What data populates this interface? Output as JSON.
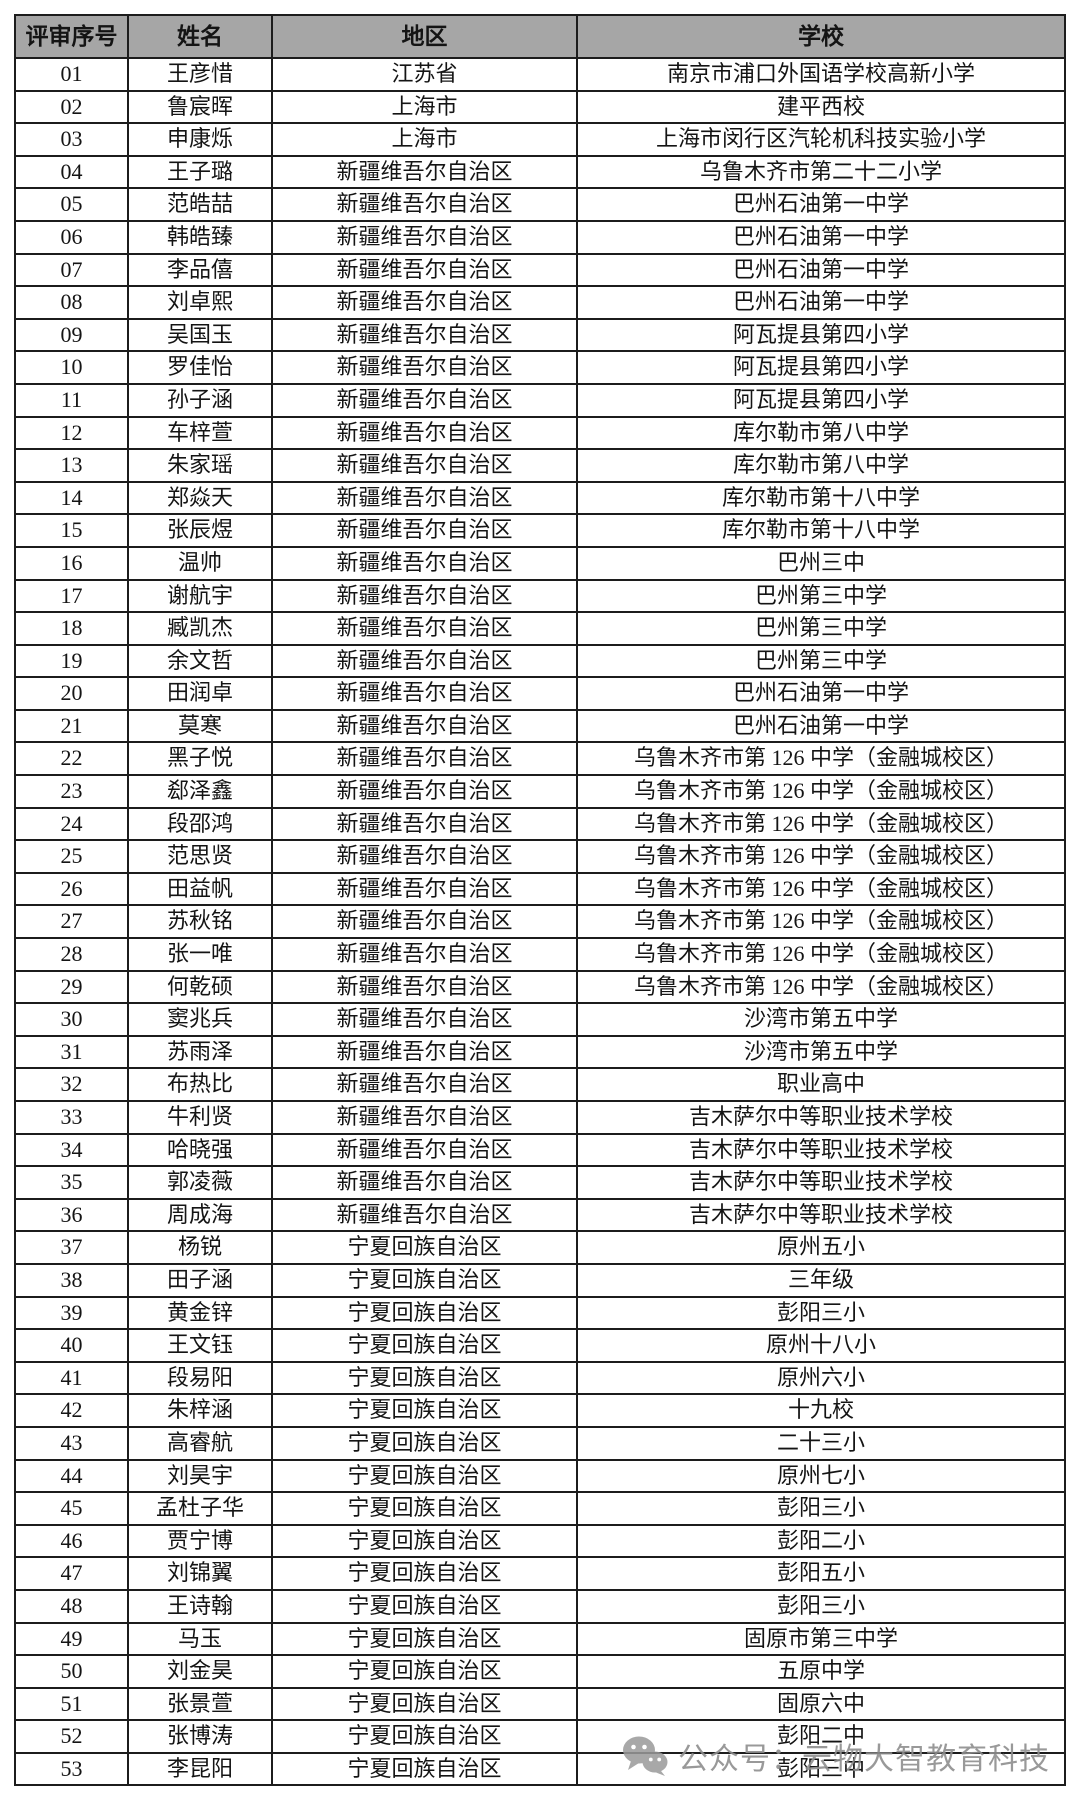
{
  "table": {
    "headers": [
      "评审序号",
      "姓名",
      "地区",
      "学校"
    ],
    "rows": [
      [
        "01",
        "王彦惜",
        "江苏省",
        "南京市浦口外国语学校高新小学"
      ],
      [
        "02",
        "鲁宸晖",
        "上海市",
        "建平西校"
      ],
      [
        "03",
        "申康烁",
        "上海市",
        "上海市闵行区汽轮机科技实验小学"
      ],
      [
        "04",
        "王子璐",
        "新疆维吾尔自治区",
        "乌鲁木齐市第二十二小学"
      ],
      [
        "05",
        "范皓喆",
        "新疆维吾尔自治区",
        "巴州石油第一中学"
      ],
      [
        "06",
        "韩皓臻",
        "新疆维吾尔自治区",
        "巴州石油第一中学"
      ],
      [
        "07",
        "李品僖",
        "新疆维吾尔自治区",
        "巴州石油第一中学"
      ],
      [
        "08",
        "刘卓熙",
        "新疆维吾尔自治区",
        "巴州石油第一中学"
      ],
      [
        "09",
        "吴国玉",
        "新疆维吾尔自治区",
        "阿瓦提县第四小学"
      ],
      [
        "10",
        "罗佳怡",
        "新疆维吾尔自治区",
        "阿瓦提县第四小学"
      ],
      [
        "11",
        "孙子涵",
        "新疆维吾尔自治区",
        "阿瓦提县第四小学"
      ],
      [
        "12",
        "车梓萱",
        "新疆维吾尔自治区",
        "库尔勒市第八中学"
      ],
      [
        "13",
        "朱家瑶",
        "新疆维吾尔自治区",
        "库尔勒市第八中学"
      ],
      [
        "14",
        "郑焱天",
        "新疆维吾尔自治区",
        "库尔勒市第十八中学"
      ],
      [
        "15",
        "张辰煜",
        "新疆维吾尔自治区",
        "库尔勒市第十八中学"
      ],
      [
        "16",
        "温帅",
        "新疆维吾尔自治区",
        "巴州三中"
      ],
      [
        "17",
        "谢航宇",
        "新疆维吾尔自治区",
        "巴州第三中学"
      ],
      [
        "18",
        "臧凯杰",
        "新疆维吾尔自治区",
        "巴州第三中学"
      ],
      [
        "19",
        "余文哲",
        "新疆维吾尔自治区",
        "巴州第三中学"
      ],
      [
        "20",
        "田润卓",
        "新疆维吾尔自治区",
        "巴州石油第一中学"
      ],
      [
        "21",
        "莫寒",
        "新疆维吾尔自治区",
        "巴州石油第一中学"
      ],
      [
        "22",
        "黑子悦",
        "新疆维吾尔自治区",
        "乌鲁木齐市第 126 中学（金融城校区）"
      ],
      [
        "23",
        "郄泽鑫",
        "新疆维吾尔自治区",
        "乌鲁木齐市第 126 中学（金融城校区）"
      ],
      [
        "24",
        "段邵鸿",
        "新疆维吾尔自治区",
        "乌鲁木齐市第 126 中学（金融城校区）"
      ],
      [
        "25",
        "范思贤",
        "新疆维吾尔自治区",
        "乌鲁木齐市第 126 中学（金融城校区）"
      ],
      [
        "26",
        "田益帆",
        "新疆维吾尔自治区",
        "乌鲁木齐市第 126 中学（金融城校区）"
      ],
      [
        "27",
        "苏秋铭",
        "新疆维吾尔自治区",
        "乌鲁木齐市第 126 中学（金融城校区）"
      ],
      [
        "28",
        "张一唯",
        "新疆维吾尔自治区",
        "乌鲁木齐市第 126 中学（金融城校区）"
      ],
      [
        "29",
        "何乾硕",
        "新疆维吾尔自治区",
        "乌鲁木齐市第 126 中学（金融城校区）"
      ],
      [
        "30",
        "窦兆兵",
        "新疆维吾尔自治区",
        "沙湾市第五中学"
      ],
      [
        "31",
        "苏雨泽",
        "新疆维吾尔自治区",
        "沙湾市第五中学"
      ],
      [
        "32",
        "布热比",
        "新疆维吾尔自治区",
        "职业高中"
      ],
      [
        "33",
        "牛利贤",
        "新疆维吾尔自治区",
        "吉木萨尔中等职业技术学校"
      ],
      [
        "34",
        "哈晓强",
        "新疆维吾尔自治区",
        "吉木萨尔中等职业技术学校"
      ],
      [
        "35",
        "郭凌薇",
        "新疆维吾尔自治区",
        "吉木萨尔中等职业技术学校"
      ],
      [
        "36",
        "周成海",
        "新疆维吾尔自治区",
        "吉木萨尔中等职业技术学校"
      ],
      [
        "37",
        "杨锐",
        "宁夏回族自治区",
        "原州五小"
      ],
      [
        "38",
        "田子涵",
        "宁夏回族自治区",
        "三年级"
      ],
      [
        "39",
        "黄金锌",
        "宁夏回族自治区",
        "彭阳三小"
      ],
      [
        "40",
        "王文钰",
        "宁夏回族自治区",
        "原州十八小"
      ],
      [
        "41",
        "段易阳",
        "宁夏回族自治区",
        "原州六小"
      ],
      [
        "42",
        "朱梓涵",
        "宁夏回族自治区",
        "十九校"
      ],
      [
        "43",
        "高睿航",
        "宁夏回族自治区",
        "二十三小"
      ],
      [
        "44",
        "刘昊宇",
        "宁夏回族自治区",
        "原州七小"
      ],
      [
        "45",
        "孟杜子华",
        "宁夏回族自治区",
        "彭阳三小"
      ],
      [
        "46",
        "贾宁博",
        "宁夏回族自治区",
        "彭阳二小"
      ],
      [
        "47",
        "刘锦翼",
        "宁夏回族自治区",
        "彭阳五小"
      ],
      [
        "48",
        "王诗翰",
        "宁夏回族自治区",
        "彭阳三小"
      ],
      [
        "49",
        "马玉",
        "宁夏回族自治区",
        "固原市第三中学"
      ],
      [
        "50",
        "刘金昊",
        "宁夏回族自治区",
        "五原中学"
      ],
      [
        "51",
        "张景萱",
        "宁夏回族自治区",
        "固原六中"
      ],
      [
        "52",
        "张博涛",
        "宁夏回族自治区",
        "彭阳二中"
      ],
      [
        "53",
        "李昆阳",
        "宁夏回族自治区",
        "彭阳三中"
      ]
    ]
  },
  "watermark": {
    "text": "公众号：云物大智教育科技",
    "icon": "wechat-icon"
  },
  "colors": {
    "header_bg": "#a6a6a6",
    "border": "#1c1c1c",
    "text": "#141414",
    "watermark": "#8e8e8e"
  }
}
